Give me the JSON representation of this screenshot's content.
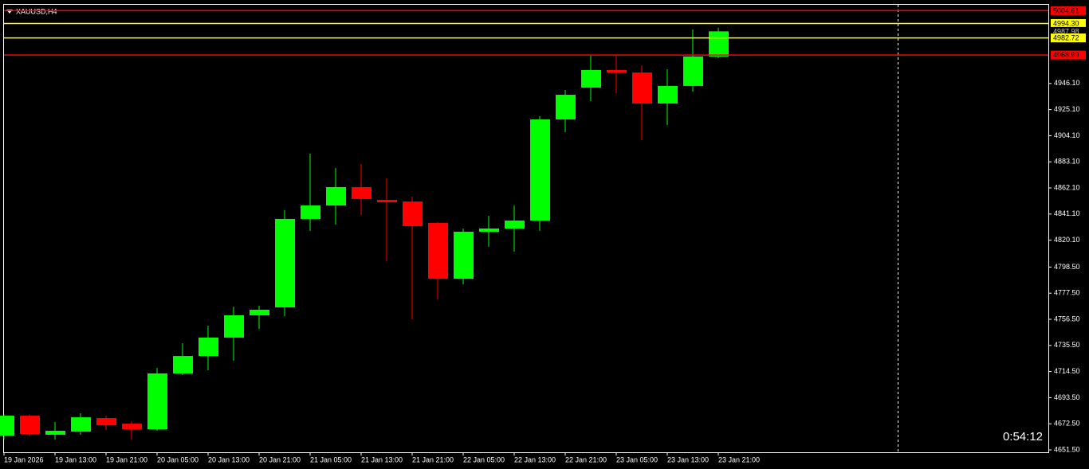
{
  "chart_data": {
    "type": "candlestick",
    "title": "XAUUSD,H4",
    "timer": "0:54:12",
    "categories": [
      "19 Jan 2026",
      null,
      "19 Jan 13:00",
      null,
      "19 Jan 21:00",
      null,
      "20 Jan 05:00",
      null,
      "20 Jan 13:00",
      null,
      "20 Jan 21:00",
      null,
      "21 Jan 05:00",
      null,
      "21 Jan 13:00",
      null,
      "21 Jan 21:00",
      null,
      "22 Jan 05:00",
      null,
      "22 Jan 13:00",
      null,
      "22 Jan 21:00",
      null,
      "23 Jan 05:00",
      null,
      "23 Jan 13:00",
      null,
      "23 Jan 21:00"
    ],
    "open": [
      4663.0,
      4679.0,
      4663.7,
      4666.2,
      4677.1,
      4672.6,
      4668.1,
      4713.0,
      4727.0,
      4741.8,
      4759.7,
      4766.1,
      4837.2,
      4848.0,
      4862.8,
      4852.5,
      4851.2,
      4834.0,
      4789.1,
      4826.9,
      4829.5,
      4835.9,
      4917.2,
      4942.8,
      4956.9,
      4954.9,
      4930.0,
      4944.1,
      4967.8
    ],
    "high": [
      4680.0,
      4680.0,
      4673.9,
      4681.0,
      4679.0,
      4674.5,
      4717.4,
      4737.3,
      4751.4,
      4766.7,
      4767.4,
      4844.2,
      4889.7,
      4878.1,
      4881.3,
      4869.8,
      4855.1,
      4834.5,
      4829.5,
      4839.7,
      4848.0,
      4919.7,
      4940.9,
      4968.4,
      4968.4,
      4960.7,
      4957.5,
      4989.5,
      4990.8
    ],
    "low": [
      4659.8,
      4662.4,
      4659.8,
      4663.7,
      4667.5,
      4659.8,
      4666.8,
      4711.7,
      4715.5,
      4723.2,
      4748.8,
      4759.0,
      4827.6,
      4832.7,
      4840.4,
      4803.2,
      4756.5,
      4772.5,
      4784.7,
      4814.8,
      4810.9,
      4827.6,
      4906.9,
      4931.9,
      4938.3,
      4900.5,
      4912.7,
      4939.6,
      4966.5
    ],
    "close": [
      4679.0,
      4664.3,
      4666.9,
      4677.7,
      4671.3,
      4668.1,
      4713.0,
      4727.0,
      4741.8,
      4759.7,
      4764.2,
      4837.2,
      4848.0,
      4862.8,
      4853.2,
      4850.6,
      4831.4,
      4789.1,
      4826.9,
      4829.5,
      4835.9,
      4917.2,
      4937.0,
      4956.9,
      4954.9,
      4930.0,
      4944.1,
      4967.8,
      4988.0
    ],
    "up_color": "#00ff00",
    "down_color": "#ff0000",
    "ylim": [
      4649.6,
      5010.0
    ],
    "yticks": [
      {
        "value": 4651.5,
        "label": "4651.50"
      },
      {
        "value": 4672.5,
        "label": "4672.50"
      },
      {
        "value": 4693.5,
        "label": "4693.50"
      },
      {
        "value": 4714.5,
        "label": "4714.50"
      },
      {
        "value": 4735.5,
        "label": "4735.50"
      },
      {
        "value": 4756.5,
        "label": "4756.50"
      },
      {
        "value": 4777.5,
        "label": "4777.50"
      },
      {
        "value": 4798.5,
        "label": "4798.50"
      },
      {
        "value": 4820.1,
        "label": "4820.10"
      },
      {
        "value": 4841.1,
        "label": "4841.10"
      },
      {
        "value": 4862.1,
        "label": "4862.10"
      },
      {
        "value": 4883.1,
        "label": "4883.10"
      },
      {
        "value": 4904.1,
        "label": "4904.10"
      },
      {
        "value": 4925.1,
        "label": "4925.10"
      },
      {
        "value": 4946.1,
        "label": "4946.10"
      }
    ],
    "levels": [
      {
        "value": 5004.61,
        "label": "5004.61",
        "color": "#ff0000",
        "line": true
      },
      {
        "value": 4994.3,
        "label": "4994.30",
        "color": "#ffff00",
        "line": true
      },
      {
        "value": 4987.98,
        "label": "4987.98",
        "color": "#c0c0c0",
        "line": false
      },
      {
        "value": 4982.72,
        "label": "4982.72",
        "color": "#ffff00",
        "line": true
      },
      {
        "value": 4968.99,
        "label": "4968.99",
        "color": "#ff0000",
        "line": true
      }
    ]
  }
}
